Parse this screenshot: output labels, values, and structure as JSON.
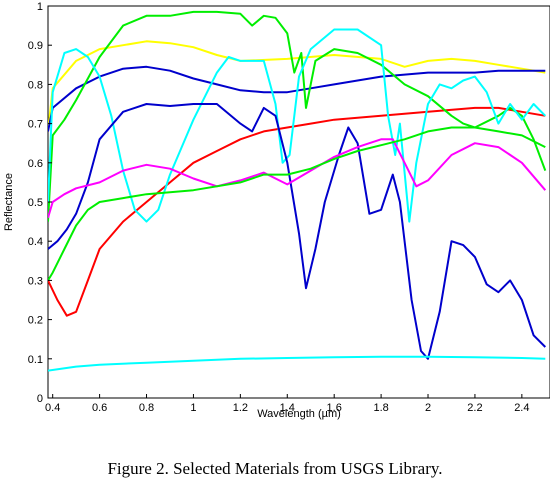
{
  "caption": "Figure 2. Selected Materials from USGS Library.",
  "chart_data": {
    "type": "line",
    "title": "",
    "xlabel": "Wavelength (µm)",
    "ylabel": "Reflectance",
    "xlim": [
      0.38,
      2.52
    ],
    "ylim": [
      0,
      1
    ],
    "xticks": [
      0.4,
      0.6,
      0.8,
      1,
      1.2,
      1.4,
      1.6,
      1.8,
      2,
      2.2,
      2.4
    ],
    "xtick_labels": [
      "0.4",
      "0.6",
      "0.8",
      "1",
      "1.2",
      "1.4",
      "1.6",
      "1.8",
      "2",
      "2.2",
      "2.4"
    ],
    "yticks": [
      0,
      0.1,
      0.2,
      0.3,
      0.4,
      0.5,
      0.6,
      0.7,
      0.8,
      0.9,
      1
    ],
    "ytick_labels": [
      "0",
      "0.1",
      "0.2",
      "0.3",
      "0.4",
      "0.5",
      "0.6",
      "0.7",
      "0.8",
      "0.9",
      "1"
    ],
    "grid": false,
    "legend": "none",
    "series": [
      {
        "color": "#ffff00",
        "points": [
          [
            0.38,
            0.68
          ],
          [
            0.4,
            0.79
          ],
          [
            0.5,
            0.86
          ],
          [
            0.6,
            0.89
          ],
          [
            0.7,
            0.9
          ],
          [
            0.8,
            0.91
          ],
          [
            0.9,
            0.905
          ],
          [
            1.0,
            0.895
          ],
          [
            1.1,
            0.875
          ],
          [
            1.2,
            0.86
          ],
          [
            1.4,
            0.865
          ],
          [
            1.6,
            0.875
          ],
          [
            1.8,
            0.865
          ],
          [
            1.9,
            0.845
          ],
          [
            2.0,
            0.86
          ],
          [
            2.1,
            0.865
          ],
          [
            2.2,
            0.86
          ],
          [
            2.3,
            0.85
          ],
          [
            2.4,
            0.84
          ],
          [
            2.5,
            0.83
          ]
        ]
      },
      {
        "color": "#0000cc",
        "points": [
          [
            0.38,
            0.68
          ],
          [
            0.4,
            0.74
          ],
          [
            0.5,
            0.79
          ],
          [
            0.6,
            0.82
          ],
          [
            0.7,
            0.84
          ],
          [
            0.8,
            0.845
          ],
          [
            0.9,
            0.835
          ],
          [
            1.0,
            0.815
          ],
          [
            1.1,
            0.8
          ],
          [
            1.2,
            0.785
          ],
          [
            1.3,
            0.78
          ],
          [
            1.4,
            0.78
          ],
          [
            1.5,
            0.79
          ],
          [
            1.6,
            0.8
          ],
          [
            1.7,
            0.81
          ],
          [
            1.8,
            0.82
          ],
          [
            1.9,
            0.825
          ],
          [
            2.0,
            0.83
          ],
          [
            2.1,
            0.83
          ],
          [
            2.2,
            0.83
          ],
          [
            2.3,
            0.835
          ],
          [
            2.4,
            0.835
          ],
          [
            2.5,
            0.835
          ]
        ]
      },
      {
        "color": "#ff0000",
        "points": [
          [
            0.38,
            0.3
          ],
          [
            0.42,
            0.25
          ],
          [
            0.46,
            0.21
          ],
          [
            0.5,
            0.22
          ],
          [
            0.55,
            0.3
          ],
          [
            0.6,
            0.38
          ],
          [
            0.7,
            0.45
          ],
          [
            0.8,
            0.5
          ],
          [
            0.9,
            0.55
          ],
          [
            1.0,
            0.6
          ],
          [
            1.1,
            0.63
          ],
          [
            1.2,
            0.66
          ],
          [
            1.3,
            0.68
          ],
          [
            1.4,
            0.69
          ],
          [
            1.5,
            0.7
          ],
          [
            1.6,
            0.71
          ],
          [
            1.8,
            0.72
          ],
          [
            2.0,
            0.73
          ],
          [
            2.2,
            0.74
          ],
          [
            2.3,
            0.74
          ],
          [
            2.4,
            0.73
          ],
          [
            2.5,
            0.72
          ]
        ]
      },
      {
        "color": "#00ee00",
        "points": [
          [
            0.38,
            0.45
          ],
          [
            0.4,
            0.67
          ],
          [
            0.45,
            0.71
          ],
          [
            0.5,
            0.76
          ],
          [
            0.6,
            0.87
          ],
          [
            0.7,
            0.95
          ],
          [
            0.8,
            0.975
          ],
          [
            0.9,
            0.975
          ],
          [
            1.0,
            0.985
          ],
          [
            1.1,
            0.985
          ],
          [
            1.2,
            0.98
          ],
          [
            1.25,
            0.95
          ],
          [
            1.3,
            0.975
          ],
          [
            1.35,
            0.97
          ],
          [
            1.4,
            0.93
          ],
          [
            1.43,
            0.83
          ],
          [
            1.46,
            0.88
          ],
          [
            1.48,
            0.74
          ],
          [
            1.52,
            0.86
          ],
          [
            1.6,
            0.89
          ],
          [
            1.7,
            0.88
          ],
          [
            1.8,
            0.85
          ],
          [
            1.9,
            0.8
          ],
          [
            2.0,
            0.77
          ],
          [
            2.1,
            0.72
          ],
          [
            2.15,
            0.7
          ],
          [
            2.2,
            0.69
          ],
          [
            2.3,
            0.72
          ],
          [
            2.35,
            0.74
          ],
          [
            2.4,
            0.72
          ],
          [
            2.45,
            0.66
          ],
          [
            2.5,
            0.58
          ]
        ]
      },
      {
        "color": "#00ffff",
        "points": [
          [
            0.38,
            0.5
          ],
          [
            0.4,
            0.78
          ],
          [
            0.45,
            0.88
          ],
          [
            0.5,
            0.89
          ],
          [
            0.55,
            0.87
          ],
          [
            0.6,
            0.82
          ],
          [
            0.65,
            0.72
          ],
          [
            0.7,
            0.58
          ],
          [
            0.75,
            0.48
          ],
          [
            0.8,
            0.45
          ],
          [
            0.85,
            0.48
          ],
          [
            0.9,
            0.57
          ],
          [
            1.0,
            0.71
          ],
          [
            1.1,
            0.83
          ],
          [
            1.15,
            0.87
          ],
          [
            1.2,
            0.86
          ],
          [
            1.3,
            0.86
          ],
          [
            1.35,
            0.75
          ],
          [
            1.38,
            0.6
          ],
          [
            1.41,
            0.62
          ],
          [
            1.45,
            0.82
          ],
          [
            1.5,
            0.89
          ],
          [
            1.6,
            0.94
          ],
          [
            1.7,
            0.94
          ],
          [
            1.8,
            0.9
          ],
          [
            1.83,
            0.72
          ],
          [
            1.86,
            0.62
          ],
          [
            1.88,
            0.7
          ],
          [
            1.92,
            0.45
          ],
          [
            1.95,
            0.6
          ],
          [
            2.0,
            0.75
          ],
          [
            2.05,
            0.8
          ],
          [
            2.1,
            0.79
          ],
          [
            2.15,
            0.81
          ],
          [
            2.2,
            0.82
          ],
          [
            2.25,
            0.78
          ],
          [
            2.3,
            0.7
          ],
          [
            2.35,
            0.75
          ],
          [
            2.4,
            0.71
          ],
          [
            2.45,
            0.75
          ],
          [
            2.5,
            0.72
          ]
        ]
      },
      {
        "color": "#0000cc",
        "points": [
          [
            0.38,
            0.38
          ],
          [
            0.42,
            0.4
          ],
          [
            0.46,
            0.43
          ],
          [
            0.5,
            0.47
          ],
          [
            0.55,
            0.55
          ],
          [
            0.6,
            0.66
          ],
          [
            0.7,
            0.73
          ],
          [
            0.8,
            0.75
          ],
          [
            0.9,
            0.745
          ],
          [
            1.0,
            0.75
          ],
          [
            1.1,
            0.75
          ],
          [
            1.2,
            0.7
          ],
          [
            1.25,
            0.68
          ],
          [
            1.3,
            0.74
          ],
          [
            1.35,
            0.72
          ],
          [
            1.4,
            0.6
          ],
          [
            1.45,
            0.42
          ],
          [
            1.48,
            0.28
          ],
          [
            1.52,
            0.38
          ],
          [
            1.56,
            0.5
          ],
          [
            1.62,
            0.62
          ],
          [
            1.66,
            0.69
          ],
          [
            1.7,
            0.65
          ],
          [
            1.75,
            0.47
          ],
          [
            1.8,
            0.48
          ],
          [
            1.85,
            0.57
          ],
          [
            1.88,
            0.5
          ],
          [
            1.93,
            0.25
          ],
          [
            1.97,
            0.12
          ],
          [
            2.0,
            0.1
          ],
          [
            2.05,
            0.22
          ],
          [
            2.1,
            0.4
          ],
          [
            2.15,
            0.39
          ],
          [
            2.2,
            0.36
          ],
          [
            2.25,
            0.29
          ],
          [
            2.3,
            0.27
          ],
          [
            2.35,
            0.3
          ],
          [
            2.4,
            0.25
          ],
          [
            2.45,
            0.16
          ],
          [
            2.5,
            0.13
          ]
        ]
      },
      {
        "color": "#ff00ff",
        "points": [
          [
            0.38,
            0.46
          ],
          [
            0.4,
            0.5
          ],
          [
            0.45,
            0.52
          ],
          [
            0.5,
            0.535
          ],
          [
            0.6,
            0.55
          ],
          [
            0.7,
            0.58
          ],
          [
            0.8,
            0.595
          ],
          [
            0.9,
            0.585
          ],
          [
            1.0,
            0.56
          ],
          [
            1.1,
            0.54
          ],
          [
            1.2,
            0.555
          ],
          [
            1.3,
            0.575
          ],
          [
            1.4,
            0.545
          ],
          [
            1.5,
            0.58
          ],
          [
            1.6,
            0.615
          ],
          [
            1.7,
            0.64
          ],
          [
            1.8,
            0.66
          ],
          [
            1.85,
            0.66
          ],
          [
            1.9,
            0.6
          ],
          [
            1.95,
            0.54
          ],
          [
            2.0,
            0.555
          ],
          [
            2.1,
            0.62
          ],
          [
            2.2,
            0.65
          ],
          [
            2.3,
            0.64
          ],
          [
            2.4,
            0.6
          ],
          [
            2.5,
            0.53
          ]
        ]
      },
      {
        "color": "#00ee00",
        "points": [
          [
            0.38,
            0.3
          ],
          [
            0.4,
            0.32
          ],
          [
            0.45,
            0.38
          ],
          [
            0.5,
            0.44
          ],
          [
            0.55,
            0.48
          ],
          [
            0.6,
            0.5
          ],
          [
            0.7,
            0.51
          ],
          [
            0.8,
            0.52
          ],
          [
            1.0,
            0.53
          ],
          [
            1.2,
            0.55
          ],
          [
            1.3,
            0.57
          ],
          [
            1.4,
            0.57
          ],
          [
            1.5,
            0.585
          ],
          [
            1.6,
            0.61
          ],
          [
            1.7,
            0.63
          ],
          [
            1.8,
            0.645
          ],
          [
            1.9,
            0.66
          ],
          [
            2.0,
            0.68
          ],
          [
            2.1,
            0.69
          ],
          [
            2.2,
            0.69
          ],
          [
            2.3,
            0.68
          ],
          [
            2.4,
            0.67
          ],
          [
            2.5,
            0.64
          ]
        ]
      },
      {
        "color": "#00ffff",
        "points": [
          [
            0.38,
            0.07
          ],
          [
            0.5,
            0.08
          ],
          [
            0.6,
            0.085
          ],
          [
            0.8,
            0.09
          ],
          [
            1.0,
            0.095
          ],
          [
            1.2,
            0.1
          ],
          [
            1.4,
            0.102
          ],
          [
            1.6,
            0.104
          ],
          [
            1.8,
            0.105
          ],
          [
            2.0,
            0.105
          ],
          [
            2.2,
            0.104
          ],
          [
            2.4,
            0.102
          ],
          [
            2.5,
            0.1
          ]
        ]
      }
    ]
  }
}
